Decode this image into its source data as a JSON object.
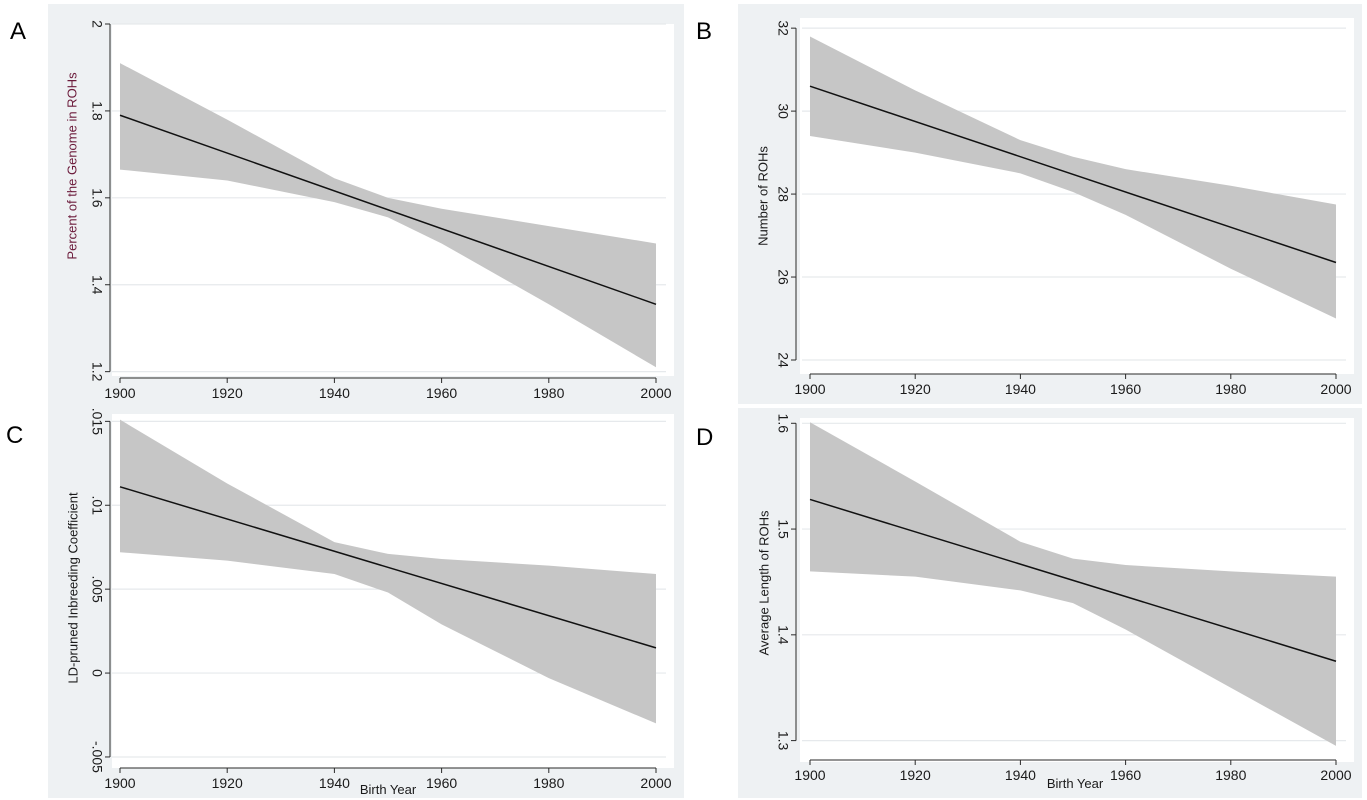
{
  "chart_data": [
    {
      "panel": "A",
      "type": "line",
      "xlabel": "",
      "ylabel": "Percent of the Genome in ROHs",
      "x_ticks": [
        "1900",
        "1920",
        "1940",
        "1960",
        "1980",
        "2000"
      ],
      "y_ticks": [
        "1.2",
        "1.4",
        "1.6",
        "1.8",
        "2"
      ],
      "y_tick_values": [
        1.2,
        1.4,
        1.6,
        1.8,
        2.0
      ],
      "ylim": [
        1.19,
        2.0
      ],
      "xlim": [
        1900,
        2000
      ],
      "grid": true,
      "series": [
        {
          "x": [
            1900,
            2000
          ],
          "values": [
            1.79,
            1.355
          ]
        }
      ],
      "ci_upper": {
        "x": [
          1900,
          1920,
          1940,
          1950,
          1960,
          1980,
          2000
        ],
        "values": [
          1.91,
          1.78,
          1.645,
          1.6,
          1.575,
          1.535,
          1.495
        ]
      },
      "ci_lower": {
        "x": [
          1900,
          1920,
          1940,
          1950,
          1960,
          1980,
          2000
        ],
        "values": [
          1.665,
          1.64,
          1.59,
          1.555,
          1.495,
          1.355,
          1.21
        ]
      }
    },
    {
      "panel": "B",
      "type": "line",
      "xlabel": "",
      "ylabel": "Number of ROHs",
      "x_ticks": [
        "1900",
        "1920",
        "1940",
        "1960",
        "1980",
        "2000"
      ],
      "y_ticks": [
        "24",
        "26",
        "28",
        "30",
        "32"
      ],
      "y_tick_values": [
        24,
        26,
        28,
        30,
        32
      ],
      "ylim": [
        24,
        32.1
      ],
      "xlim": [
        1900,
        2000
      ],
      "grid": true,
      "series": [
        {
          "x": [
            1900,
            2000
          ],
          "values": [
            30.6,
            26.35
          ]
        }
      ],
      "ci_upper": {
        "x": [
          1900,
          1920,
          1940,
          1950,
          1960,
          1980,
          2000
        ],
        "values": [
          31.8,
          30.5,
          29.3,
          28.9,
          28.6,
          28.2,
          27.75
        ]
      },
      "ci_lower": {
        "x": [
          1900,
          1920,
          1940,
          1950,
          1960,
          1980,
          2000
        ],
        "values": [
          29.4,
          29.0,
          28.5,
          28.05,
          27.5,
          26.2,
          25.0
        ]
      }
    },
    {
      "panel": "C",
      "type": "line",
      "xlabel": "Birth Year",
      "ylabel": "LD-pruned Inbreeding Coefficient",
      "x_ticks": [
        "1900",
        "1920",
        "1940",
        "1960",
        "1980",
        "2000"
      ],
      "y_ticks": [
        "-.005",
        "0",
        ".005",
        ".01",
        ".015"
      ],
      "y_tick_values": [
        -0.005,
        0,
        0.005,
        0.01,
        0.015
      ],
      "ylim": [
        -0.0053,
        0.0152
      ],
      "xlim": [
        1900,
        2000
      ],
      "grid": true,
      "series": [
        {
          "x": [
            1900,
            2000
          ],
          "values": [
            0.0111,
            0.0015
          ]
        }
      ],
      "ci_upper": {
        "x": [
          1900,
          1920,
          1940,
          1950,
          1960,
          1980,
          2000
        ],
        "values": [
          0.0151,
          0.0113,
          0.0078,
          0.0071,
          0.0068,
          0.0064,
          0.0059
        ]
      },
      "ci_lower": {
        "x": [
          1900,
          1920,
          1940,
          1950,
          1960,
          1980,
          2000
        ],
        "values": [
          0.0072,
          0.0067,
          0.0059,
          0.0048,
          0.0029,
          -0.0003,
          -0.003
        ]
      }
    },
    {
      "panel": "D",
      "type": "line",
      "xlabel": "Birth Year",
      "ylabel": "Average Length of ROHs",
      "x_ticks": [
        "1900",
        "1920",
        "1940",
        "1960",
        "1980",
        "2000"
      ],
      "y_ticks": [
        "1.3",
        "1.4",
        "1.5",
        "1.6"
      ],
      "y_tick_values": [
        1.3,
        1.4,
        1.5,
        1.6
      ],
      "ylim": [
        1.293,
        1.605
      ],
      "xlim": [
        1900,
        2000
      ],
      "grid": true,
      "series": [
        {
          "x": [
            1900,
            2000
          ],
          "values": [
            1.528,
            1.375
          ]
        }
      ],
      "ci_upper": {
        "x": [
          1900,
          1920,
          1940,
          1950,
          1960,
          1980,
          2000
        ],
        "values": [
          1.601,
          1.545,
          1.488,
          1.472,
          1.466,
          1.46,
          1.455
        ]
      },
      "ci_lower": {
        "x": [
          1900,
          1920,
          1940,
          1950,
          1960,
          1980,
          2000
        ],
        "values": [
          1.46,
          1.455,
          1.442,
          1.43,
          1.405,
          1.35,
          1.295
        ]
      }
    }
  ],
  "colors": {
    "band": "#c6c6c6",
    "line": "#111111",
    "grid": "#e6e9ec",
    "panel_bg": "#eef1f3",
    "plot_bg": "#ffffff",
    "axis": "#2a2a2a"
  }
}
